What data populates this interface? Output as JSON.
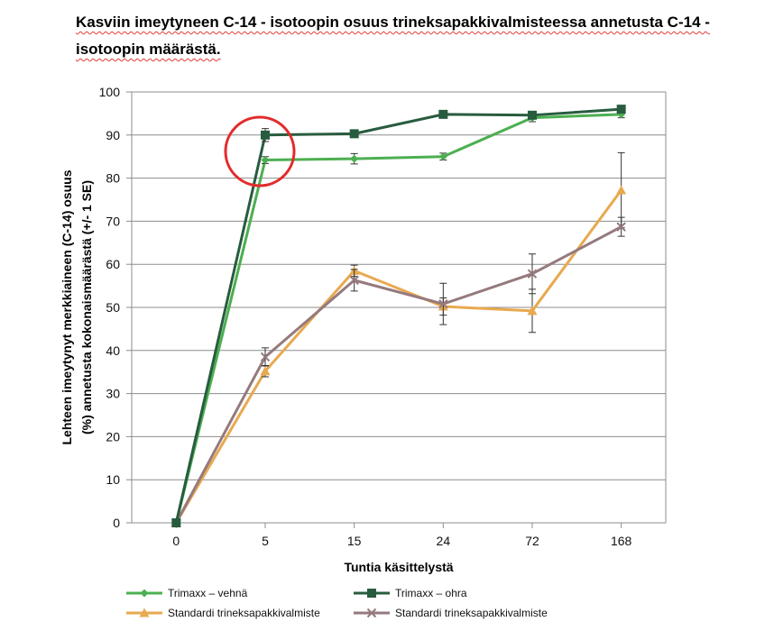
{
  "chart_data": {
    "type": "line",
    "title": "Kasviin imeytyneen C-14 - isotoopin osuus trineksapakkivalmisteessa annetusta C-14 - isotoopin määrästä.",
    "xlabel": "Tuntia käsittelystä",
    "ylabel_lines": [
      "Lehteen imeytynyt merkkiaineen (C-14) osuus",
      "(%) annetusta kokonaismäärästä (+/- 1 SE)"
    ],
    "categories": [
      "0",
      "5",
      "15",
      "24",
      "72",
      "168"
    ],
    "ylim": [
      0,
      100
    ],
    "yticks": [
      0,
      10,
      20,
      30,
      40,
      50,
      60,
      70,
      80,
      90,
      100
    ],
    "grid": true,
    "legend_position": "bottom",
    "annotation": "red-circle-around-5h",
    "series": [
      {
        "name": "Trimaxx – vehnä",
        "color": "#4caf50",
        "marker": "diamond",
        "values": [
          0,
          84.2,
          84.5,
          85.0,
          94.0,
          94.8
        ],
        "errors": [
          0,
          0.8,
          1.2,
          0.8,
          0.9,
          0.8
        ]
      },
      {
        "name": "Trimaxx – ohra",
        "color": "#285c3f",
        "marker": "square",
        "values": [
          0,
          90.0,
          90.3,
          94.8,
          94.6,
          96.0
        ],
        "errors": [
          0,
          1.5,
          0.6,
          0.5,
          0.6,
          0.6
        ]
      },
      {
        "name": "Standardi trineksapakkivalmiste",
        "color": "#e8a94f",
        "marker": "triangle",
        "values": [
          0,
          35.2,
          58.5,
          50.2,
          49.2,
          77.2
        ],
        "errors": [
          0,
          1.3,
          1.3,
          2.0,
          5.0,
          8.7
        ]
      },
      {
        "name": "Standardi trineksapakkivalmiste",
        "color": "#957a7d",
        "marker": "x",
        "values": [
          0,
          38.5,
          56.3,
          50.8,
          57.8,
          68.7
        ],
        "errors": [
          0,
          2.1,
          2.5,
          4.8,
          4.6,
          2.2
        ]
      }
    ]
  }
}
